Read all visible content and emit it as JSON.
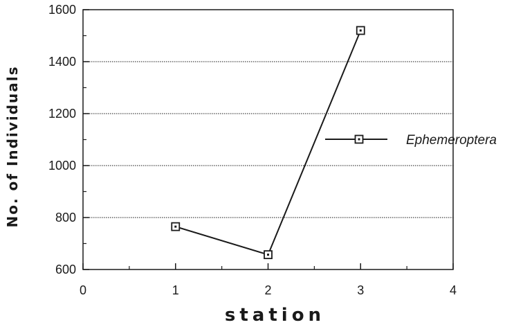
{
  "chart_data": {
    "type": "line",
    "xlabel": "station",
    "ylabel": "No.  of  Individuals",
    "xlim": [
      0,
      4
    ],
    "ylim": [
      600,
      1600
    ],
    "xticks": [
      "0",
      "1",
      "2",
      "3",
      "4"
    ],
    "yticks": [
      "600",
      "800",
      "1000",
      "1200",
      "1400",
      "1600"
    ],
    "grid": "horizontal dotted",
    "legend_position": "right",
    "series": [
      {
        "name": "Ephemeroptera",
        "x": [
          1,
          2,
          3
        ],
        "y": [
          765,
          657,
          1520
        ],
        "color": "#1a1a1a",
        "marker": "square"
      }
    ]
  }
}
